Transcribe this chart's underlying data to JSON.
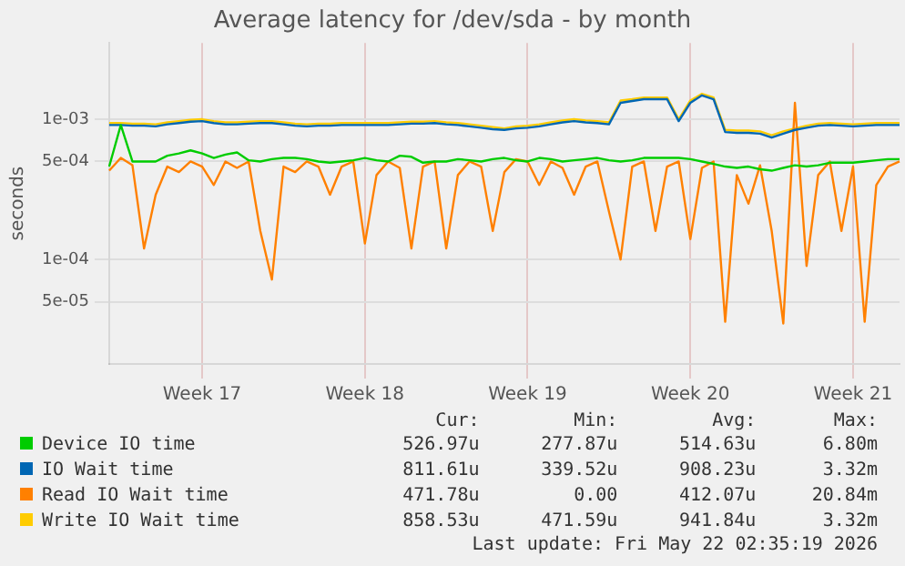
{
  "chart_data": {
    "type": "line",
    "title": "Average latency for /dev/sda - by month",
    "ylabel": "seconds",
    "log": "y",
    "grid": true,
    "legend": "bottom",
    "marker": "none",
    "line_style": "solid",
    "categories": [
      null,
      null,
      null,
      null,
      null,
      null,
      null,
      null,
      "Week 17",
      null,
      null,
      null,
      null,
      null,
      null,
      null,
      null,
      null,
      null,
      null,
      null,
      null,
      "Week 18",
      null,
      null,
      null,
      null,
      null,
      null,
      null,
      null,
      null,
      null,
      null,
      null,
      null,
      "Week 19",
      null,
      null,
      null,
      null,
      null,
      null,
      null,
      null,
      null,
      null,
      null,
      null,
      null,
      "Week 20",
      null,
      null,
      null,
      null,
      null,
      null,
      null,
      null,
      null,
      null,
      null,
      null,
      null,
      "Week 21",
      null,
      null,
      null,
      null
    ],
    "ylim": [
      1.8e-05,
      0.0035
    ],
    "yticks": [
      {
        "value": 5e-05,
        "label": "5e-05"
      },
      {
        "value": 0.0001,
        "label": "1e-04"
      },
      {
        "value": 0.0005,
        "label": "5e-04"
      },
      {
        "value": 0.001,
        "label": "1e-03"
      }
    ],
    "series": [
      {
        "name": "Device IO time",
        "color": "#00cc00",
        "values": [
          0.00046,
          0.00091,
          0.0005,
          0.0005,
          0.0005,
          0.00055,
          0.00057,
          0.0006,
          0.00057,
          0.00053,
          0.00056,
          0.00058,
          0.00051,
          0.0005,
          0.00052,
          0.00053,
          0.00053,
          0.00052,
          0.0005,
          0.00049,
          0.0005,
          0.00051,
          0.00053,
          0.00051,
          0.0005,
          0.00055,
          0.00054,
          0.00049,
          0.0005,
          0.0005,
          0.00052,
          0.00051,
          0.0005,
          0.00052,
          0.00053,
          0.00051,
          0.0005,
          0.00053,
          0.00052,
          0.0005,
          0.00051,
          0.00052,
          0.00053,
          0.00051,
          0.0005,
          0.00051,
          0.00053,
          0.00053,
          0.00053,
          0.00053,
          0.00052,
          0.0005,
          0.00048,
          0.00046,
          0.00045,
          0.00046,
          0.00044,
          0.00043,
          0.00045,
          0.00047,
          0.00046,
          0.00047,
          0.00049,
          0.00049,
          0.00049,
          0.0005,
          0.00051,
          0.00052,
          0.00052
        ]
      },
      {
        "name": "IO Wait time",
        "color": "#0066b3",
        "values": [
          0.00091,
          0.00091,
          0.0009,
          0.0009,
          0.00089,
          0.00092,
          0.00094,
          0.00096,
          0.00097,
          0.00094,
          0.00092,
          0.00092,
          0.00093,
          0.00094,
          0.00094,
          0.00092,
          0.0009,
          0.00089,
          0.0009,
          0.0009,
          0.00091,
          0.00091,
          0.00091,
          0.00091,
          0.00091,
          0.00092,
          0.00093,
          0.00093,
          0.00094,
          0.00092,
          0.00091,
          0.00089,
          0.00087,
          0.00085,
          0.00084,
          0.00086,
          0.00087,
          0.00089,
          0.00092,
          0.00095,
          0.00097,
          0.00095,
          0.00094,
          0.00092,
          0.00131,
          0.00135,
          0.00139,
          0.00139,
          0.00139,
          0.00097,
          0.00131,
          0.00148,
          0.00139,
          0.00081,
          0.0008,
          0.0008,
          0.00079,
          0.00074,
          0.00079,
          0.00084,
          0.00087,
          0.0009,
          0.00091,
          0.0009,
          0.00089,
          0.0009,
          0.00091,
          0.00091,
          0.00091
        ]
      },
      {
        "name": "Read IO Wait time",
        "color": "#ff8000",
        "values": [
          0.00043,
          0.00053,
          0.00047,
          0.00012,
          0.00029,
          0.00046,
          0.00042,
          0.0005,
          0.00046,
          0.00034,
          0.0005,
          0.00045,
          0.0005,
          0.00016,
          7.2e-05,
          0.00046,
          0.00042,
          0.0005,
          0.00046,
          0.00029,
          0.00046,
          0.0005,
          0.00013,
          0.0004,
          0.0005,
          0.00045,
          0.00012,
          0.00046,
          0.0005,
          0.00012,
          0.0004,
          0.0005,
          0.00046,
          0.00016,
          0.00042,
          0.00052,
          0.0005,
          0.00034,
          0.0005,
          0.00045,
          0.00029,
          0.00046,
          0.0005,
          0.00022,
          0.0001,
          0.00046,
          0.0005,
          0.00016,
          0.00046,
          0.0005,
          0.00014,
          0.00045,
          0.0005,
          3.6e-05,
          0.0004,
          0.00025,
          0.00047,
          0.00016,
          3.5e-05,
          0.00131,
          9e-05,
          0.0004,
          0.0005,
          0.00016,
          0.00046,
          3.6e-05,
          0.00034,
          0.00046,
          0.0005
        ]
      },
      {
        "name": "Write IO Wait time",
        "color": "#ffcc00",
        "values": [
          0.00094,
          0.00094,
          0.00093,
          0.00093,
          0.00092,
          0.00095,
          0.00097,
          0.00099,
          0.001,
          0.00097,
          0.00095,
          0.00095,
          0.00096,
          0.00097,
          0.00097,
          0.00095,
          0.00093,
          0.00092,
          0.00093,
          0.00093,
          0.00094,
          0.00094,
          0.00094,
          0.00094,
          0.00094,
          0.00095,
          0.00096,
          0.00096,
          0.00097,
          0.00095,
          0.00094,
          0.00092,
          0.0009,
          0.00088,
          0.00086,
          0.00089,
          0.0009,
          0.00092,
          0.00095,
          0.00098,
          0.001,
          0.00098,
          0.00097,
          0.00095,
          0.00136,
          0.00139,
          0.00143,
          0.00143,
          0.00143,
          0.001,
          0.00136,
          0.00152,
          0.00143,
          0.00084,
          0.00083,
          0.00083,
          0.00082,
          0.00077,
          0.00082,
          0.00086,
          0.0009,
          0.00093,
          0.00094,
          0.00093,
          0.00092,
          0.00093,
          0.00094,
          0.00094,
          0.00094
        ]
      }
    ],
    "annotations": [
      "Cur:",
      "Min:",
      "Avg:",
      "Max:",
      "526.97u",
      "277.87u",
      "514.63u",
      "6.80m",
      "811.61u",
      "339.52u",
      "908.23u",
      "3.32m",
      "471.78u",
      "0.00",
      "412.07u",
      "20.84m",
      "858.53u",
      "471.59u",
      "941.84u",
      "3.32m",
      "Last update: Fri May 22 02:35:19 2026"
    ]
  }
}
